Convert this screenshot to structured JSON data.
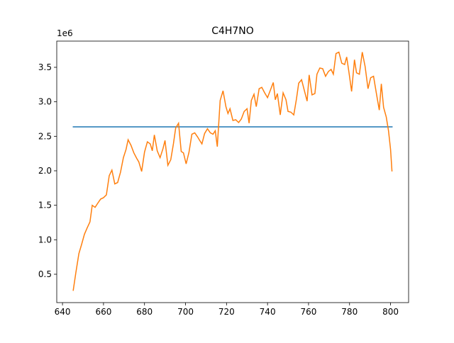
{
  "chart_data": {
    "type": "line",
    "title": "C4H7NO",
    "y_offset_label": "1e6",
    "xlim": [
      637.2,
      808.8
    ],
    "ylim": [
      0.089,
      3.88
    ],
    "xticks": [
      640,
      660,
      680,
      700,
      720,
      740,
      760,
      780,
      800
    ],
    "yticks": [
      0.5,
      {
        "value": 1,
        "label": "1.0"
      },
      1.5,
      {
        "value": 2,
        "label": "2.0"
      },
      2.5,
      {
        "value": 3,
        "label": "3.0"
      },
      3.5
    ],
    "series": [
      {
        "color": "#1f77b4",
        "x": [
          645,
          801
        ],
        "values": [
          2.637,
          2.637
        ]
      },
      {
        "color": "#ff7f0e",
        "x": [
          645.2,
          646.5,
          648,
          649.3,
          650.7,
          652,
          653.4,
          654.5,
          655.9,
          657.2,
          658.6,
          660,
          661.4,
          662.8,
          664.1,
          665.5,
          666.9,
          668.3,
          669.7,
          671,
          672,
          673.4,
          674.8,
          676.2,
          677.2,
          678.6,
          680,
          681.4,
          682.8,
          683.8,
          684.8,
          686.2,
          687.6,
          689,
          690,
          691.4,
          692.8,
          694.1,
          695.2,
          696.6,
          697.9,
          699,
          700.3,
          701.7,
          703.1,
          704.5,
          705.9,
          706.9,
          708,
          709.3,
          710.7,
          712.1,
          713.4,
          714.5,
          715.5,
          716.9,
          718.3,
          719.7,
          720.7,
          721.7,
          723.1,
          724.5,
          725.9,
          727.2,
          728.6,
          730,
          731,
          732.1,
          733.4,
          734.5,
          735.9,
          737.2,
          738.6,
          740,
          741.4,
          742.8,
          743.8,
          744.8,
          746.2,
          747.6,
          749,
          750,
          751.4,
          752.8,
          754.1,
          755.2,
          756.6,
          757.9,
          759.3,
          760.3,
          761.7,
          763.1,
          764.1,
          765.5,
          766.9,
          768.3,
          769.7,
          771,
          772.1,
          773.4,
          774.8,
          776.2,
          777.6,
          778.6,
          779.7,
          781,
          782.4,
          783.4,
          784.8,
          786.2,
          787.6,
          789,
          790.3,
          791.7,
          793.1,
          794.5,
          795.5,
          796.6,
          797.9,
          799,
          800,
          800.7
        ],
        "values": [
          0.26,
          0.52,
          0.8,
          0.93,
          1.08,
          1.17,
          1.26,
          1.5,
          1.47,
          1.53,
          1.59,
          1.61,
          1.65,
          1.93,
          2.01,
          1.81,
          1.83,
          1.98,
          2.19,
          2.31,
          2.45,
          2.37,
          2.26,
          2.18,
          2.13,
          1.99,
          2.27,
          2.42,
          2.39,
          2.29,
          2.52,
          2.29,
          2.19,
          2.32,
          2.44,
          2.08,
          2.16,
          2.39,
          2.62,
          2.69,
          2.28,
          2.26,
          2.1,
          2.27,
          2.53,
          2.55,
          2.49,
          2.44,
          2.39,
          2.54,
          2.61,
          2.55,
          2.53,
          2.58,
          2.35,
          3.02,
          3.16,
          2.93,
          2.83,
          2.9,
          2.73,
          2.74,
          2.7,
          2.75,
          2.86,
          2.9,
          2.69,
          3.02,
          3.11,
          2.93,
          3.19,
          3.21,
          3.13,
          3.06,
          3.17,
          3.28,
          3.03,
          3.12,
          2.81,
          3.13,
          3.03,
          2.86,
          2.85,
          2.81,
          3.04,
          3.27,
          3.32,
          3.17,
          3.01,
          3.39,
          3.1,
          3.12,
          3.4,
          3.49,
          3.48,
          3.37,
          3.44,
          3.47,
          3.4,
          3.7,
          3.72,
          3.56,
          3.54,
          3.65,
          3.43,
          3.15,
          3.61,
          3.42,
          3.4,
          3.72,
          3.51,
          3.19,
          3.35,
          3.37,
          3.12,
          2.88,
          3.26,
          2.92,
          2.78,
          2.58,
          2.31,
          1.99
        ]
      }
    ]
  }
}
